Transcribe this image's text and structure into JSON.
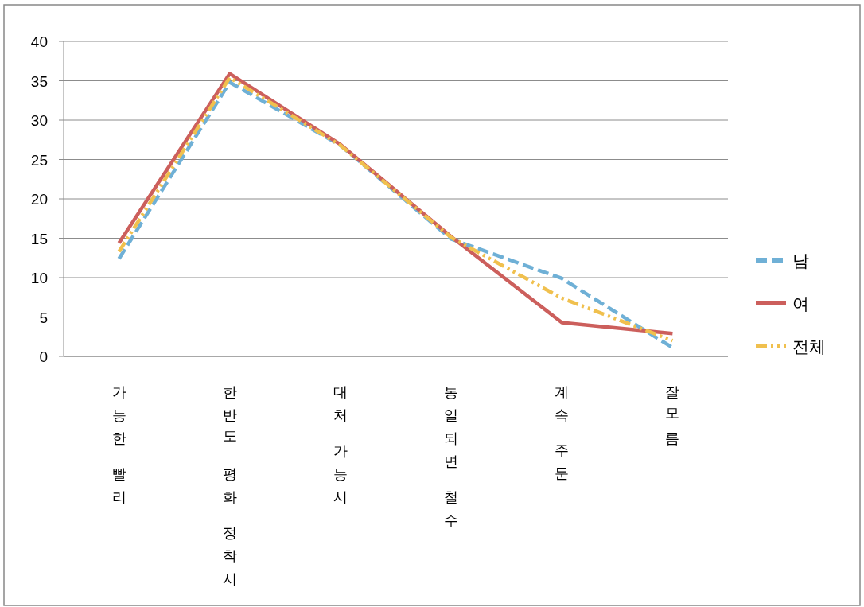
{
  "chart_data": {
    "type": "line",
    "categories": [
      "가능한 빨리",
      "한반도 평화 정착시",
      "대처 가능시",
      "통일되면 철수",
      "계속 주둔",
      "잘모름"
    ],
    "ylim": [
      0,
      40
    ],
    "yticks": [
      0,
      5,
      10,
      15,
      20,
      25,
      30,
      35,
      40
    ],
    "grid": "y",
    "legend": "right",
    "marker": "none",
    "series": [
      {
        "name": "남",
        "color": "#6fb0d6",
        "line_style": "dashed",
        "values": [
          12.4,
          34.8,
          26.8,
          14.9,
          9.9,
          1.1
        ]
      },
      {
        "name": "여",
        "color": "#cc5f5c",
        "line_style": "solid",
        "values": [
          14.4,
          35.9,
          26.9,
          15.2,
          4.3,
          2.9
        ]
      },
      {
        "name": "전체",
        "color": "#f0c04e",
        "line_style": "dotted",
        "values": [
          13.3,
          35.4,
          26.8,
          15.1,
          7.4,
          2.0
        ]
      }
    ]
  }
}
